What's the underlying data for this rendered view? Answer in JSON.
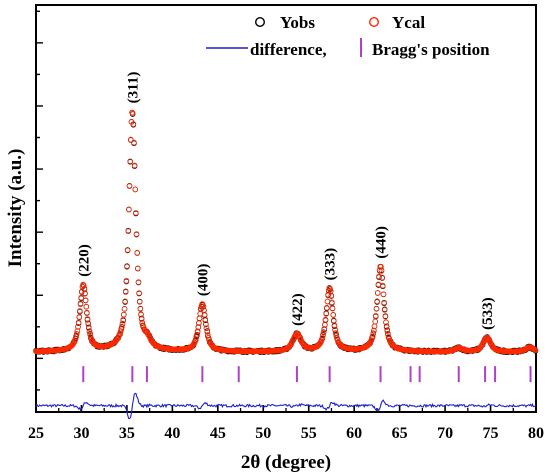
{
  "chart_data": {
    "type": "line",
    "title": "",
    "xlabel": "2θ (degree)",
    "ylabel": "Intensity (a.u.)",
    "xlim": [
      25,
      80
    ],
    "ylim": [
      -0.17,
      1.12
    ],
    "x_ticks": [
      25,
      30,
      35,
      40,
      45,
      50,
      55,
      60,
      65,
      70,
      75,
      80
    ],
    "y_ticks_labeled": false,
    "grid": false,
    "legend": {
      "placement": "top-right",
      "entries": [
        {
          "label": "Yobs",
          "marker": "open-circle",
          "color": "#000000"
        },
        {
          "label": "Ycal",
          "marker": "open-circle",
          "color": "#ff2a00"
        },
        {
          "label": "difference,",
          "marker": "line",
          "color": "#1f1fd0"
        },
        {
          "label": "Bragg's position",
          "marker": "tick",
          "color": "#b040c8"
        }
      ]
    },
    "baseline": 0.02,
    "peaks": [
      {
        "label": "(220)",
        "x": 30.2,
        "height": 0.21,
        "width": 0.45
      },
      {
        "label": "(311)",
        "x": 35.6,
        "height": 0.76,
        "width": 0.45
      },
      {
        "label": "(400)",
        "x": 43.3,
        "height": 0.15,
        "width": 0.45
      },
      {
        "label": "(422)",
        "x": 53.7,
        "height": 0.055,
        "width": 0.55
      },
      {
        "label": "(333)",
        "x": 57.3,
        "height": 0.2,
        "width": 0.45
      },
      {
        "label": "(440)",
        "x": 62.9,
        "height": 0.27,
        "width": 0.45
      },
      {
        "label": "(533)",
        "x": 74.6,
        "height": 0.045,
        "width": 0.5
      }
    ],
    "minor_peaks": [
      {
        "x": 37.3,
        "height": 0.02,
        "width": 0.4
      },
      {
        "x": 71.5,
        "height": 0.012,
        "width": 0.5
      },
      {
        "x": 79.3,
        "height": 0.015,
        "width": 0.5
      }
    ],
    "bragg_positions": [
      30.2,
      35.6,
      37.2,
      43.3,
      47.3,
      53.7,
      57.3,
      62.9,
      66.2,
      67.2,
      71.5,
      74.4,
      75.5,
      79.4
    ],
    "bragg_level": -0.05,
    "difference_level": -0.15,
    "series": [
      {
        "name": "Yobs",
        "style": "open-circles",
        "color": "#000000"
      },
      {
        "name": "Ycal",
        "style": "open-circles",
        "color": "#ff2a00"
      },
      {
        "name": "difference,",
        "style": "line",
        "color": "#1f1fd0"
      },
      {
        "name": "Bragg's position",
        "style": "ticks",
        "color": "#b040c8"
      }
    ]
  }
}
